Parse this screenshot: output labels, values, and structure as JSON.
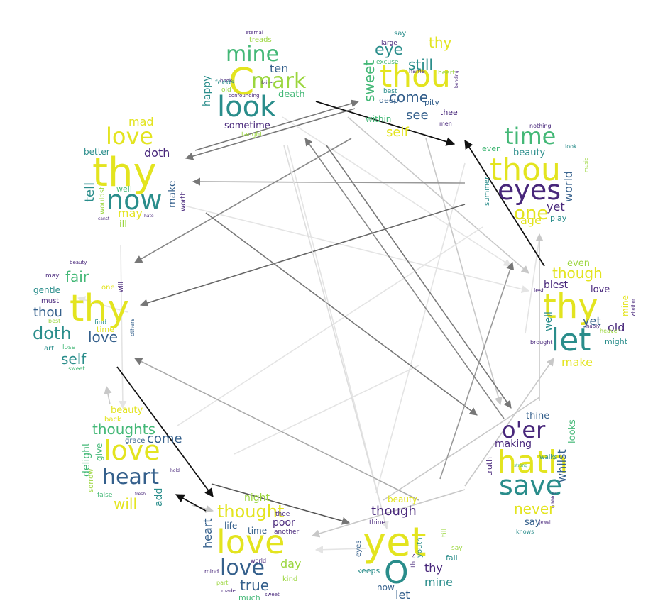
{
  "colors": {
    "viridis_yellow": "#e3e41f",
    "viridis_lime": "#9bd63e",
    "viridis_green": "#44b877",
    "viridis_teal": "#2a8d8b",
    "viridis_blue": "#35608c",
    "viridis_purple": "#48277b",
    "arrow_strong": "#111111",
    "arrow_medium": "#777777",
    "arrow_light": "#c8c8c8",
    "arrow_faint": "#e4e4e4"
  },
  "clouds": [
    {
      "id": "c1",
      "words": [
        "mine",
        "C",
        "mark",
        "look",
        "ten",
        "happy",
        "death",
        "sometime",
        "taught",
        "old",
        "treads",
        "feeds",
        "eternal",
        "fairer",
        "book",
        "confounding"
      ]
    },
    {
      "id": "c2",
      "words": [
        "say",
        "thy",
        "eye",
        "thou",
        "still",
        "sweet",
        "come",
        "see",
        "self",
        "large",
        "excuse",
        "name",
        "heart",
        "best",
        "pity",
        "deep",
        "thee",
        "within",
        "men",
        "bending"
      ]
    },
    {
      "id": "c3",
      "words": [
        "mad",
        "love",
        "thy",
        "now",
        "doth",
        "tell",
        "better",
        "make",
        "worth",
        "well",
        "may",
        "wouldst",
        "canst",
        "ill",
        "hate"
      ]
    },
    {
      "id": "c4",
      "words": [
        "time",
        "thou",
        "eyes",
        "beauty",
        "world",
        "even",
        "one",
        "age",
        "yet",
        "play",
        "nothing",
        "look",
        "music",
        "summer"
      ]
    },
    {
      "id": "c5",
      "words": [
        "beauty",
        "fair",
        "may",
        "gentle",
        "must",
        "one",
        "thy",
        "thou",
        "doth",
        "will",
        "find",
        "love",
        "time",
        "self",
        "art",
        "best",
        "lose",
        "sweet",
        "others"
      ]
    },
    {
      "id": "c6",
      "words": [
        "even",
        "though",
        "blest",
        "love",
        "thy",
        "let",
        "yet",
        "old",
        "well",
        "make",
        "might",
        "heaven",
        "brought",
        "haply",
        "lest",
        "mine",
        "whether"
      ]
    },
    {
      "id": "c7",
      "words": [
        "beauty",
        "back",
        "thoughts",
        "love",
        "grace",
        "come",
        "delight",
        "give",
        "heart",
        "sorrow",
        "will",
        "add",
        "false",
        "fresh",
        "hold"
      ]
    },
    {
      "id": "c8",
      "words": [
        "o'er",
        "thine",
        "hath",
        "save",
        "making",
        "looks",
        "walks",
        "whilst",
        "truth",
        "never",
        "say",
        "knows",
        "jewel",
        "rubbing",
        "strong"
      ]
    },
    {
      "id": "c9",
      "words": [
        "night",
        "thought",
        "heart",
        "poor",
        "thee",
        "life",
        "time",
        "another",
        "love",
        "day",
        "true",
        "much",
        "kind",
        "world",
        "mind",
        "part",
        "made",
        "sweet"
      ]
    },
    {
      "id": "c10",
      "words": [
        "beauty",
        "though",
        "thine",
        "yet",
        "O",
        "eyes",
        "till",
        "youth",
        "say",
        "fall",
        "thy",
        "thus",
        "mine",
        "keeps",
        "now",
        "let"
      ]
    }
  ]
}
